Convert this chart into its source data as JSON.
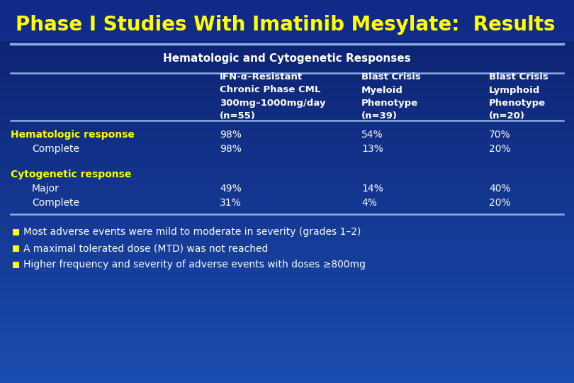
{
  "title": "Phase I Studies With Imatinib Mesylate:  Results",
  "subtitle": "Hematologic and Cytogenetic Responses",
  "bg_top_color": "#0d1f6e",
  "bg_bottom_color": "#1040b0",
  "title_color": "#ffff00",
  "subtitle_color": "#ffffff",
  "header_color": "#ffffff",
  "row_label_bold_color": "#ffff00",
  "row_label_indent_color": "#ffffff",
  "data_color": "#ffffff",
  "line_color": "#8ab0e0",
  "bullet_color": "#ffff00",
  "col_headers": [
    "IFN-α–Resistant\nChronic Phase CML\n300mg–1000mg/day\n(n=55)",
    "Blast Crisis\nMyeloid\nPhenotype\n(n=39)",
    "Blast Crisis\nLymphoid\nPhenotype\n(n=20)"
  ],
  "rows": [
    {
      "label": "Hematologic response",
      "bold": true,
      "indent": false,
      "values": [
        "98%",
        "54%",
        "70%"
      ]
    },
    {
      "label": "Complete",
      "bold": false,
      "indent": true,
      "values": [
        "98%",
        "13%",
        "20%"
      ]
    },
    {
      "label": "",
      "bold": false,
      "indent": false,
      "values": [
        "",
        "",
        ""
      ]
    },
    {
      "label": "Cytogenetic response",
      "bold": true,
      "indent": false,
      "values": [
        "",
        "",
        ""
      ]
    },
    {
      "label": "Major",
      "bold": false,
      "indent": true,
      "values": [
        "49%",
        "14%",
        "40%"
      ]
    },
    {
      "label": "Complete",
      "bold": false,
      "indent": true,
      "values": [
        "31%",
        "4%",
        "20%"
      ]
    }
  ],
  "bullets": [
    "Most adverse events were mild to moderate in severity (grades 1–2)",
    "A maximal tolerated dose (MTD) was not reached",
    "Higher frequency and severity of adverse events with doses ≥800mg"
  ],
  "title_fontsize": 20,
  "subtitle_fontsize": 11,
  "header_fontsize": 9.5,
  "row_fontsize": 10,
  "bullet_fontsize": 10
}
